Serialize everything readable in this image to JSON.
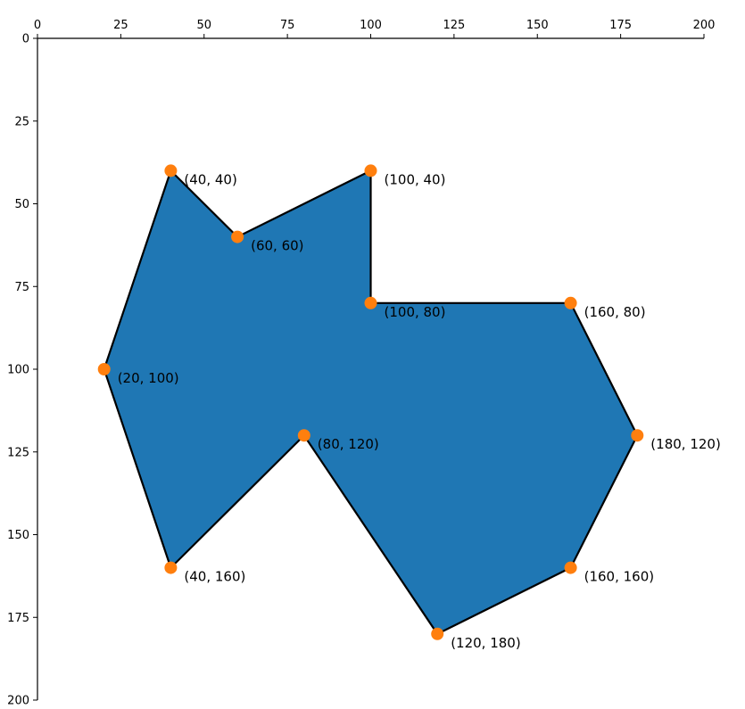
{
  "chart_data": {
    "type": "scatter",
    "title": "",
    "xlabel": "",
    "ylabel": "",
    "xlim": [
      0,
      200
    ],
    "ylim": [
      0,
      200
    ],
    "y_axis_inverted": true,
    "x_axis_position": "top",
    "grid": false,
    "x_ticks": [
      0,
      25,
      50,
      75,
      100,
      125,
      150,
      175,
      200
    ],
    "y_ticks": [
      0,
      25,
      50,
      75,
      100,
      125,
      150,
      175,
      200
    ],
    "polygon": {
      "fill_color": "#1f77b4",
      "edge_color": "#000000",
      "vertices": [
        {
          "x": 40,
          "y": 40,
          "label": "(40, 40)"
        },
        {
          "x": 60,
          "y": 60,
          "label": "(60, 60)"
        },
        {
          "x": 100,
          "y": 40,
          "label": "(100, 40)"
        },
        {
          "x": 100,
          "y": 80,
          "label": "(100, 80)"
        },
        {
          "x": 160,
          "y": 80,
          "label": "(160, 80)"
        },
        {
          "x": 180,
          "y": 120,
          "label": "(180, 120)"
        },
        {
          "x": 160,
          "y": 160,
          "label": "(160, 160)"
        },
        {
          "x": 120,
          "y": 180,
          "label": "(120, 180)"
        },
        {
          "x": 80,
          "y": 120,
          "label": "(80, 120)"
        },
        {
          "x": 40,
          "y": 160,
          "label": "(40, 160)"
        },
        {
          "x": 20,
          "y": 100,
          "label": "(20, 100)"
        }
      ]
    },
    "marker_color": "#ff7f0e"
  }
}
